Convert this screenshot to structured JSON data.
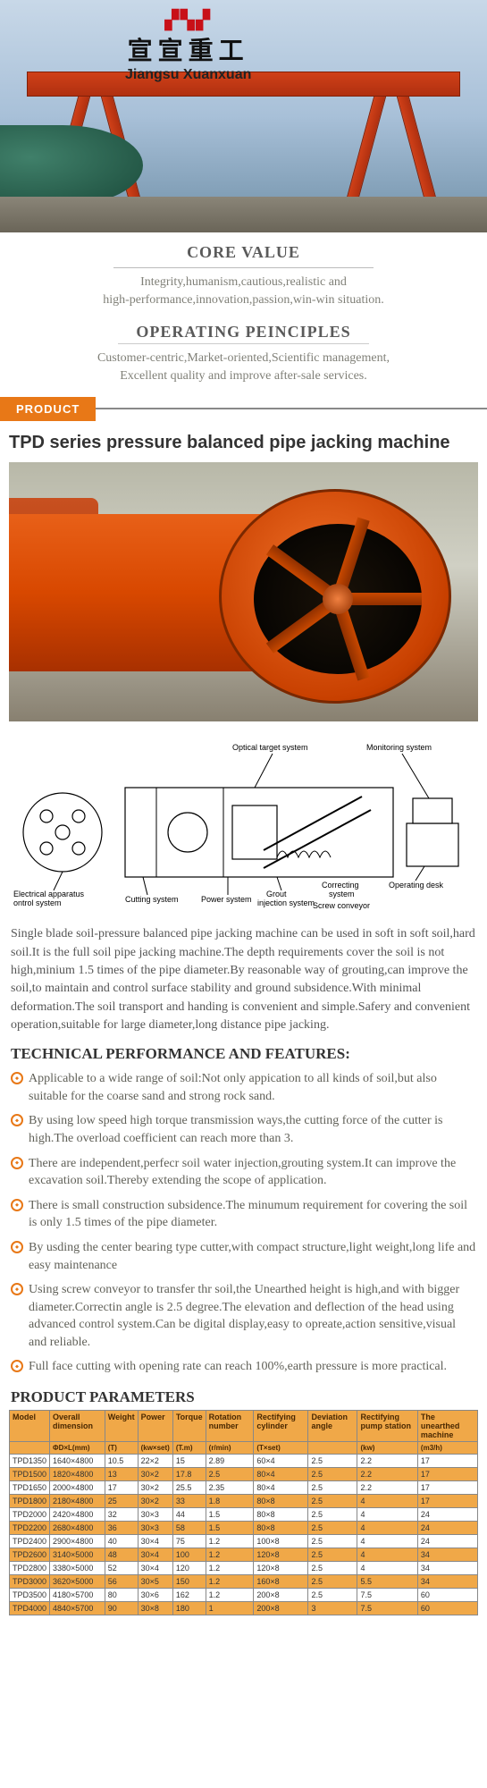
{
  "header": {
    "logo_cn": "宣宣重工",
    "logo_en": "Jiangsu Xuanxuan"
  },
  "core": {
    "title": "CORE VALUE",
    "line1": "Integrity,humanism,cautious,realistic and",
    "line2": "high-performance,innovation,passion,win-win situation.",
    "op_title": "OPERATING PEINCIPLES",
    "op_line1": "Customer-centric,Market-oriented,Scientific management,",
    "op_line2": "Excellent quality and improve after-sale services."
  },
  "product_bar": "PRODUCT",
  "product_title": "TPD series pressure balanced pipe jacking machine",
  "diagram_labels": {
    "optical": "Optical target system",
    "monitoring": "Monitoring system",
    "electrical": "Electrical apparatus\ncontrol system",
    "cutting": "Cutting system",
    "power": "Power system",
    "grout": "Grout\ninjection system",
    "correcting": "Correcting\nsystem",
    "screw": "Screw conveyor\nsystem",
    "desk": "Operating  desk"
  },
  "intro": "Single blade soil-pressure balanced pipe jacking machine can be used in soft in soft soil,hard soil.It is the full soil pipe jacking machine.The depth requirements cover the soil is not high,minium 1.5 times of the pipe diameter.By reasonable way of grouting,can improve the soil,to maintain and control surface stability and ground subsidence.With minimal deformation.The soil transport and handing is convenient and simple.Safery and convenient operation,suitable for large diameter,long distance pipe jacking.",
  "tech_heading": "TECHNICAL PERFORMANCE AND FEATURES:",
  "features": [
    "Applicable to a wide range of soil:Not only appication to all kinds of soil,but also suitable for the coarse sand and strong rock sand.",
    "By using low speed high torque transmission ways,the cutting force of the cutter is high.The overload coefficient can reach more than 3.",
    "There are independent,perfecr soil water injection,grouting system.It can improve the excavation soil.Thereby extending the scope of application.",
    "There is small construction subsidence.The minumum requirement for covering the soil is only 1.5 times of the pipe diameter.",
    "By usding the center bearing type cutter,with compact structure,light weight,long life and easy maintenance",
    "Using screw conveyor to transfer thr soil,the Unearthed height is high,and with bigger diameter.Correctin angle is 2.5 degree.The elevation and deflection of the head using advanced control system.Can be digital display,easy to opreate,action sensitive,visual and reliable.",
    "Full face cutting with opening rate can reach 100%,earth pressure is more practical."
  ],
  "params_heading": "PRODUCT PARAMETERS",
  "table": {
    "headers": [
      "Model",
      "Overall dimension",
      "Weight",
      "Power",
      "Torque",
      "Rotation number",
      "Rectifying cylinder",
      "Deviation angle",
      "Rectifying pump station",
      "The unearthed machine"
    ],
    "units": [
      "",
      "ΦD×L(mm)",
      "(T)",
      "(kw×set)",
      "(T.m)",
      "(r/min)",
      "(T×set)",
      "",
      "(kw)",
      "(m3/h)"
    ],
    "rows": [
      [
        "TPD1350",
        "1640×4800",
        "10.5",
        "22×2",
        "15",
        "2.89",
        "60×4",
        "2.5",
        "2.2",
        "17"
      ],
      [
        "TPD1500",
        "1820×4800",
        "13",
        "30×2",
        "17.8",
        "2.5",
        "80×4",
        "2.5",
        "2.2",
        "17"
      ],
      [
        "TPD1650",
        "2000×4800",
        "17",
        "30×2",
        "25.5",
        "2.35",
        "80×4",
        "2.5",
        "2.2",
        "17"
      ],
      [
        "TPD1800",
        "2180×4800",
        "25",
        "30×2",
        "33",
        "1.8",
        "80×8",
        "2.5",
        "4",
        "17"
      ],
      [
        "TPD2000",
        "2420×4800",
        "32",
        "30×3",
        "44",
        "1.5",
        "80×8",
        "2.5",
        "4",
        "24"
      ],
      [
        "TPD2200",
        "2680×4800",
        "36",
        "30×3",
        "58",
        "1.5",
        "80×8",
        "2.5",
        "4",
        "24"
      ],
      [
        "TPD2400",
        "2900×4800",
        "40",
        "30×4",
        "75",
        "1.2",
        "100×8",
        "2.5",
        "4",
        "24"
      ],
      [
        "TPD2600",
        "3140×5000",
        "48",
        "30×4",
        "100",
        "1.2",
        "120×8",
        "2.5",
        "4",
        "34"
      ],
      [
        "TPD2800",
        "3380×5000",
        "52",
        "30×4",
        "120",
        "1.2",
        "120×8",
        "2.5",
        "4",
        "34"
      ],
      [
        "TPD3000",
        "3620×5000",
        "56",
        "30×5",
        "150",
        "1.2",
        "160×8",
        "2.5",
        "5.5",
        "34"
      ],
      [
        "TPD3500",
        "4180×5700",
        "80",
        "30×6",
        "162",
        "1.2",
        "200×8",
        "2.5",
        "7.5",
        "60"
      ],
      [
        "TPD4000",
        "4840×5700",
        "90",
        "30×8",
        "180",
        "1",
        "200×8",
        "3",
        "7.5",
        "60"
      ]
    ],
    "header_bg": "#f0a848",
    "alt_bg": "#f0a848",
    "border": "#888888"
  }
}
